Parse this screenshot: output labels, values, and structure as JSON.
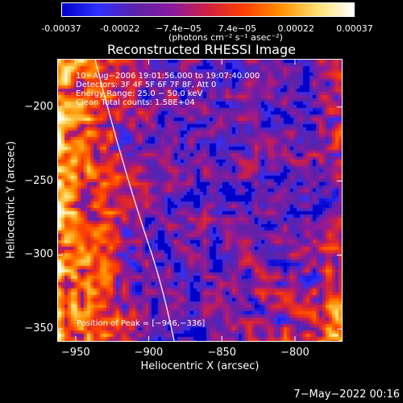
{
  "colorbar": {
    "ticks": [
      "-0.00037",
      "-0.00022",
      "−7.4e−05",
      "7.4e−05",
      "0.00022",
      "0.00037"
    ],
    "units": "(photons cm⁻² s⁻¹ asec⁻²)",
    "colors": [
      "#0000c8",
      "#3030ff",
      "#5a22a8",
      "#8a1aa0",
      "#d02040",
      "#ff4000",
      "#ff9000",
      "#ffe070",
      "#ffffff"
    ]
  },
  "chart_data": {
    "type": "heatmap",
    "title": "Reconstructed RHESSI Image",
    "xlabel": "Heliocentric X (arcsec)",
    "ylabel": "Heliocentric Y (arcsec)",
    "xlim": [
      -962,
      -768
    ],
    "ylim": [
      -358,
      -168
    ],
    "xticks": [
      -950,
      -900,
      -850,
      -800
    ],
    "yticks": [
      -200,
      -250,
      -300,
      -350
    ],
    "colorbar_range": [
      -0.00037,
      0.00037
    ],
    "peak": [
      -946,
      -336
    ]
  },
  "info": {
    "time": "10−Aug−2006 19:01:56.000 to 19:07:40.000",
    "detectors": "Detectors: 3F 4F 5F 6F 7F 8F, Att 0",
    "energy": "Energy Range: 25.0 − 50.0 keV",
    "clean": "Clean    Total counts: 1.58E+04",
    "peak": "Position of Peak = [−946,−336]"
  },
  "datestamp": "7−May−2022 00:16"
}
